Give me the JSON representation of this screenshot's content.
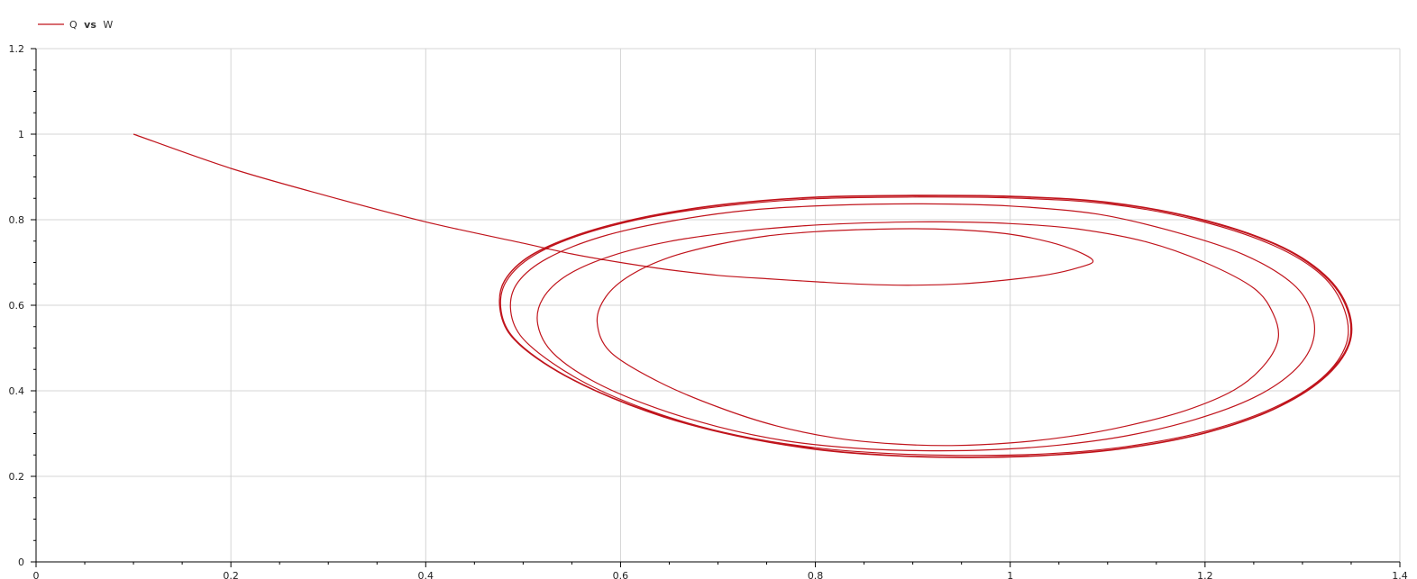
{
  "chart_data": {
    "type": "line",
    "legend": {
      "placement": "top-left",
      "entries": [
        {
          "y_name": "Q",
          "joiner": "vs",
          "x_name": "W"
        }
      ]
    },
    "xlim": [
      0,
      1.4
    ],
    "ylim": [
      0,
      1.2
    ],
    "x_ticks": [
      0,
      0.2,
      0.4,
      0.6,
      0.8,
      1,
      1.2,
      1.4
    ],
    "x_tick_labels": [
      "0",
      "0.2",
      "0.4",
      "0.6",
      "0.8",
      "1",
      "1.2",
      "1.4"
    ],
    "y_ticks": [
      0,
      0.2,
      0.4,
      0.6,
      0.8,
      1,
      1.2
    ],
    "y_tick_labels": [
      "0",
      "0.2",
      "0.4",
      "0.6",
      "0.8",
      "1",
      "1.2"
    ],
    "x_minor_step": 0.05,
    "y_minor_step": 0.05,
    "grid": true,
    "series": [
      {
        "color": "#c0141c",
        "points": [
          [
            0.1,
            1.0
          ],
          [
            0.2,
            0.92
          ],
          [
            0.3,
            0.855
          ],
          [
            0.4,
            0.795
          ],
          [
            0.5,
            0.745
          ],
          [
            0.55,
            0.72
          ],
          [
            0.6,
            0.7
          ],
          [
            0.65,
            0.683
          ],
          [
            0.7,
            0.67
          ],
          [
            0.75,
            0.662
          ],
          [
            0.8,
            0.655
          ],
          [
            0.85,
            0.649
          ],
          [
            0.9,
            0.647
          ],
          [
            0.95,
            0.65
          ],
          [
            1.0,
            0.66
          ],
          [
            1.04,
            0.672
          ],
          [
            1.07,
            0.688
          ],
          [
            1.085,
            0.703
          ],
          [
            1.07,
            0.725
          ],
          [
            1.04,
            0.748
          ],
          [
            1.0,
            0.766
          ],
          [
            0.95,
            0.776
          ],
          [
            0.9,
            0.779
          ],
          [
            0.85,
            0.777
          ],
          [
            0.8,
            0.772
          ],
          [
            0.75,
            0.762
          ],
          [
            0.7,
            0.742
          ],
          [
            0.65,
            0.712
          ],
          [
            0.61,
            0.67
          ],
          [
            0.585,
            0.62
          ],
          [
            0.576,
            0.56
          ],
          [
            0.59,
            0.49
          ],
          [
            0.64,
            0.42
          ],
          [
            0.7,
            0.362
          ],
          [
            0.76,
            0.318
          ],
          [
            0.82,
            0.29
          ],
          [
            0.88,
            0.276
          ],
          [
            0.94,
            0.272
          ],
          [
            1.0,
            0.278
          ],
          [
            1.06,
            0.293
          ],
          [
            1.12,
            0.318
          ],
          [
            1.18,
            0.354
          ],
          [
            1.23,
            0.402
          ],
          [
            1.26,
            0.458
          ],
          [
            1.275,
            0.52
          ],
          [
            1.27,
            0.58
          ],
          [
            1.25,
            0.64
          ],
          [
            1.2,
            0.7
          ],
          [
            1.14,
            0.748
          ],
          [
            1.07,
            0.778
          ],
          [
            1.0,
            0.791
          ],
          [
            0.93,
            0.795
          ],
          [
            0.86,
            0.793
          ],
          [
            0.79,
            0.786
          ],
          [
            0.72,
            0.772
          ],
          [
            0.65,
            0.749
          ],
          [
            0.59,
            0.715
          ],
          [
            0.545,
            0.67
          ],
          [
            0.52,
            0.615
          ],
          [
            0.515,
            0.555
          ],
          [
            0.53,
            0.49
          ],
          [
            0.57,
            0.425
          ],
          [
            0.63,
            0.365
          ],
          [
            0.7,
            0.316
          ],
          [
            0.77,
            0.283
          ],
          [
            0.84,
            0.266
          ],
          [
            0.91,
            0.26
          ],
          [
            0.98,
            0.262
          ],
          [
            1.05,
            0.273
          ],
          [
            1.12,
            0.295
          ],
          [
            1.19,
            0.333
          ],
          [
            1.25,
            0.384
          ],
          [
            1.29,
            0.444
          ],
          [
            1.31,
            0.51
          ],
          [
            1.31,
            0.58
          ],
          [
            1.29,
            0.65
          ],
          [
            1.24,
            0.718
          ],
          [
            1.17,
            0.771
          ],
          [
            1.09,
            0.813
          ],
          [
            1.0,
            0.832
          ],
          [
            0.91,
            0.837
          ],
          [
            0.82,
            0.834
          ],
          [
            0.73,
            0.822
          ],
          [
            0.65,
            0.796
          ],
          [
            0.58,
            0.76
          ],
          [
            0.525,
            0.71
          ],
          [
            0.495,
            0.655
          ],
          [
            0.487,
            0.595
          ],
          [
            0.497,
            0.53
          ],
          [
            0.53,
            0.465
          ],
          [
            0.58,
            0.4
          ],
          [
            0.65,
            0.338
          ],
          [
            0.72,
            0.296
          ],
          [
            0.8,
            0.267
          ],
          [
            0.88,
            0.253
          ],
          [
            0.96,
            0.249
          ],
          [
            1.04,
            0.253
          ],
          [
            1.12,
            0.27
          ],
          [
            1.2,
            0.305
          ],
          [
            1.27,
            0.36
          ],
          [
            1.32,
            0.43
          ],
          [
            1.345,
            0.51
          ],
          [
            1.343,
            0.59
          ],
          [
            1.32,
            0.67
          ],
          [
            1.27,
            0.74
          ],
          [
            1.19,
            0.8
          ],
          [
            1.1,
            0.837
          ],
          [
            1.0,
            0.851
          ],
          [
            0.9,
            0.853
          ],
          [
            0.8,
            0.849
          ],
          [
            0.71,
            0.833
          ],
          [
            0.63,
            0.806
          ],
          [
            0.56,
            0.765
          ],
          [
            0.51,
            0.715
          ],
          [
            0.483,
            0.657
          ],
          [
            0.477,
            0.595
          ],
          [
            0.488,
            0.53
          ],
          [
            0.522,
            0.465
          ],
          [
            0.575,
            0.4
          ],
          [
            0.645,
            0.34
          ],
          [
            0.72,
            0.295
          ],
          [
            0.8,
            0.264
          ],
          [
            0.88,
            0.249
          ],
          [
            0.96,
            0.245
          ],
          [
            1.04,
            0.25
          ],
          [
            1.12,
            0.267
          ],
          [
            1.2,
            0.302
          ],
          [
            1.27,
            0.357
          ],
          [
            1.32,
            0.428
          ],
          [
            1.347,
            0.508
          ],
          [
            1.346,
            0.59
          ],
          [
            1.322,
            0.67
          ],
          [
            1.272,
            0.742
          ],
          [
            1.192,
            0.802
          ],
          [
            1.1,
            0.84
          ],
          [
            1.0,
            0.854
          ],
          [
            0.9,
            0.856
          ],
          [
            0.8,
            0.852
          ],
          [
            0.71,
            0.836
          ],
          [
            0.63,
            0.808
          ],
          [
            0.56,
            0.767
          ],
          [
            0.508,
            0.716
          ],
          [
            0.481,
            0.657
          ],
          [
            0.476,
            0.595
          ],
          [
            0.487,
            0.53
          ],
          [
            0.521,
            0.465
          ],
          [
            0.574,
            0.4
          ],
          [
            0.644,
            0.339
          ],
          [
            0.72,
            0.294
          ],
          [
            0.8,
            0.263
          ],
          [
            0.88,
            0.248
          ],
          [
            0.96,
            0.244
          ],
          [
            1.04,
            0.249
          ],
          [
            1.12,
            0.266
          ],
          [
            1.2,
            0.301
          ],
          [
            1.27,
            0.356
          ],
          [
            1.321,
            0.427
          ],
          [
            1.348,
            0.508
          ],
          [
            1.347,
            0.591
          ],
          [
            1.323,
            0.671
          ],
          [
            1.273,
            0.743
          ],
          [
            1.193,
            0.803
          ],
          [
            1.1,
            0.841
          ],
          [
            1.0,
            0.855
          ],
          [
            0.9,
            0.857
          ],
          [
            0.8,
            0.853
          ],
          [
            0.71,
            0.837
          ],
          [
            0.63,
            0.809
          ],
          [
            0.56,
            0.768
          ],
          [
            0.508,
            0.717
          ],
          [
            0.481,
            0.658
          ],
          [
            0.476,
            0.596
          ],
          [
            0.487,
            0.53
          ],
          [
            0.521,
            0.466
          ],
          [
            0.574,
            0.401
          ],
          [
            0.644,
            0.34
          ],
          [
            0.72,
            0.295
          ],
          [
            0.8,
            0.264
          ]
        ]
      }
    ]
  }
}
